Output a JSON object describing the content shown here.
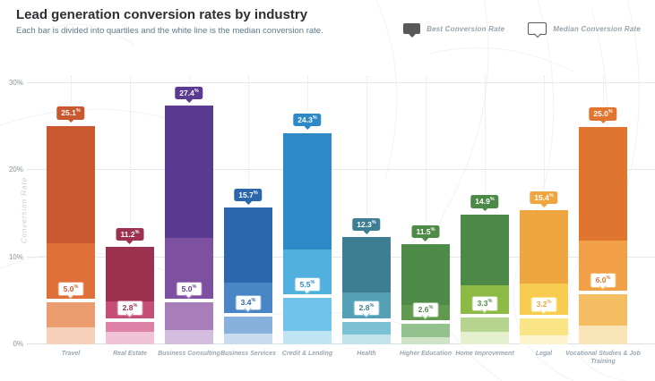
{
  "header": {
    "title": "Lead generation conversion rates by industry",
    "subtitle": "Each bar is divided into quartiles and the white line is the median conversion rate."
  },
  "legend": {
    "items": [
      {
        "label": "Best Conversion Rate",
        "icon": "best-rate-tooltip-icon",
        "style": "filled",
        "color": "#58595b"
      },
      {
        "label": "Median Conversion Rate",
        "icon": "median-rate-tooltip-icon",
        "style": "outline",
        "color": "#58595b"
      }
    ]
  },
  "chart_data": {
    "type": "bar",
    "title": "Lead generation conversion rates by industry",
    "subtitle": "Each bar is divided into quartiles and the white line is the median conversion rate.",
    "xlabel": "",
    "ylabel": "Conversion Rate",
    "ylim": [
      0,
      30
    ],
    "yticks": [
      {
        "value": 0,
        "label": "0%"
      },
      {
        "value": 10,
        "label": "10%"
      },
      {
        "value": 20,
        "label": "20%"
      },
      {
        "value": 30,
        "label": "30%"
      }
    ],
    "grid": "horizontal",
    "legend_position": "top-right",
    "percent_symbol": "%",
    "categories": [
      "Travel",
      "Real Estate",
      "Business Consulting",
      "Business Services",
      "Credit & Lending",
      "Health",
      "Higher Education",
      "Home Improvement",
      "Legal",
      "Vocational Studies & Job Training"
    ],
    "bars": [
      {
        "category": "Travel",
        "best": 25.1,
        "best_label": "25.1",
        "q3": 11.6,
        "median": 5.0,
        "median_label": "5.0",
        "q1": 2.0,
        "colors": {
          "q4": "#c9582f",
          "q3": "#e0703a",
          "q2": "#eb9d70",
          "q1": "#f5d0ba"
        }
      },
      {
        "category": "Real Estate",
        "best": 11.2,
        "best_label": "11.2",
        "q3": 4.9,
        "median": 2.8,
        "median_label": "2.8",
        "q1": 1.4,
        "colors": {
          "q4": "#9c3150",
          "q3": "#c44e74",
          "q2": "#dd82a6",
          "q1": "#f0c3d6"
        }
      },
      {
        "category": "Business Consulting",
        "best": 27.4,
        "best_label": "27.4",
        "q3": 12.2,
        "median": 5.0,
        "median_label": "5.0",
        "q1": 1.6,
        "colors": {
          "q4": "#5b3b92",
          "q3": "#7d519f",
          "q2": "#a87eba",
          "q1": "#d3bcdd"
        }
      },
      {
        "category": "Business Services",
        "best": 15.7,
        "best_label": "15.7",
        "q3": 7.1,
        "median": 3.4,
        "median_label": "3.4",
        "q1": 1.2,
        "colors": {
          "q4": "#2c66ad",
          "q3": "#4a86c6",
          "q2": "#88b0dd",
          "q1": "#c9dcef"
        }
      },
      {
        "category": "Credit & Lending",
        "best": 24.3,
        "best_label": "24.3",
        "q3": 10.9,
        "median": 5.5,
        "median_label": "5.5",
        "q1": 1.5,
        "colors": {
          "q4": "#2d8ac6",
          "q3": "#51b0de",
          "q2": "#70c4ea",
          "q1": "#c0e4f4"
        }
      },
      {
        "category": "Health",
        "best": 12.3,
        "best_label": "12.3",
        "q3": 6.0,
        "median": 2.8,
        "median_label": "2.8",
        "q1": 1.1,
        "colors": {
          "q4": "#3d7e93",
          "q3": "#55a0b5",
          "q2": "#7cc0d4",
          "q1": "#c2e2ec"
        }
      },
      {
        "category": "Higher Education",
        "best": 11.5,
        "best_label": "11.5",
        "q3": 4.5,
        "median": 2.6,
        "median_label": "2.6",
        "q1": 0.8,
        "colors": {
          "q4": "#4e8a48",
          "q3": "#61994f",
          "q2": "#94c28e",
          "q1": "#cde4c8"
        }
      },
      {
        "category": "Home Improvement",
        "best": 14.9,
        "best_label": "14.9",
        "q3": 6.8,
        "median": 3.3,
        "median_label": "3.3",
        "q1": 1.4,
        "colors": {
          "q4": "#4c8846",
          "q3": "#8cba44",
          "q2": "#b5d48e",
          "q1": "#e3efcd"
        }
      },
      {
        "category": "Legal",
        "best": 15.4,
        "best_label": "15.4",
        "q3": 7.0,
        "median": 3.2,
        "median_label": "3.2",
        "q1": 1.0,
        "colors": {
          "q4": "#efa640",
          "q3": "#f8cc50",
          "q2": "#f9e486",
          "q1": "#fdf4cf"
        }
      },
      {
        "category": "Vocational Studies & Job Training",
        "best": 25.0,
        "best_label": "25.0",
        "q3": 11.9,
        "median": 6.0,
        "median_label": "6.0",
        "q1": 2.2,
        "colors": {
          "q4": "#e0752f",
          "q3": "#f1a047",
          "q2": "#f5bd62",
          "q1": "#f9e4b8"
        }
      }
    ]
  }
}
